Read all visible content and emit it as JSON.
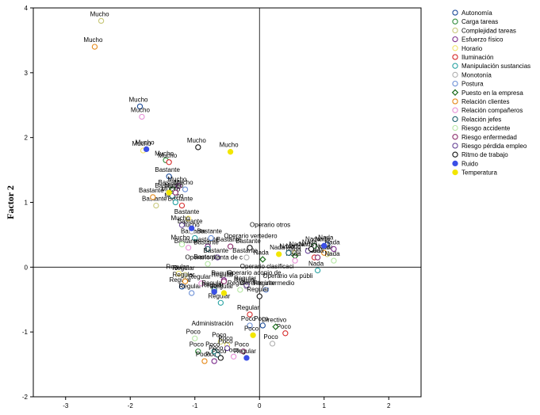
{
  "chart_data": {
    "type": "scatter",
    "title": "",
    "xlabel": "",
    "ylabel": "Factor 2",
    "xlim": [
      -3.5,
      2.5
    ],
    "ylim": [
      -2,
      4
    ],
    "xticks": [
      -3,
      -2,
      -1,
      0,
      1,
      2
    ],
    "yticks": [
      -2,
      -1,
      0,
      1,
      2,
      3,
      4
    ],
    "grid": false,
    "legend_position": "top-right outside",
    "series": [
      {
        "name": "Autonomía",
        "color": "#1f4e9a",
        "marker": "circle-open",
        "points": [
          {
            "x": -1.85,
            "y": 2.48,
            "label": "Mucho"
          },
          {
            "x": -1.4,
            "y": 1.4,
            "label": "Bastante"
          },
          {
            "x": -1.2,
            "y": -0.3,
            "label": "Regular"
          },
          {
            "x": 0.05,
            "y": -0.9,
            "label": "Poco"
          },
          {
            "x": 1.05,
            "y": 0.35,
            "label": "Nada"
          }
        ]
      },
      {
        "name": "Carga tareas",
        "color": "#2e8b3a",
        "marker": "circle-open",
        "points": [
          {
            "x": -1.45,
            "y": 1.65,
            "label": "Mucho"
          },
          {
            "x": -1.35,
            "y": 1.2,
            "label": "Bastante"
          },
          {
            "x": -0.7,
            "y": -0.38,
            "label": "Regular"
          },
          {
            "x": -0.95,
            "y": -1.3,
            "label": "Poco"
          },
          {
            "x": 0.85,
            "y": 0.33,
            "label": "Nada"
          }
        ]
      },
      {
        "name": "Complejidad tareas",
        "color": "#c8c87a",
        "marker": "circle-open",
        "points": [
          {
            "x": -2.45,
            "y": 3.8,
            "label": "Mucho"
          },
          {
            "x": -1.6,
            "y": 0.95,
            "label": "Bastante"
          },
          {
            "x": -1.15,
            "y": -0.12,
            "label": "Regular"
          },
          {
            "x": -0.6,
            "y": -1.15,
            "label": "Poco"
          },
          {
            "x": 1.05,
            "y": 0.2,
            "label": "Nada"
          }
        ]
      },
      {
        "name": "Esfuerzo físico",
        "color": "#7b2d8b",
        "marker": "circle-open",
        "points": [
          {
            "x": -1.25,
            "y": 1.25,
            "label": "Mucho"
          },
          {
            "x": -0.8,
            "y": 0.32,
            "label": "Bastante"
          },
          {
            "x": -0.55,
            "y": -0.2,
            "label": "Regular"
          },
          {
            "x": -0.7,
            "y": -1.45,
            "label": "Poco"
          },
          {
            "x": 1.15,
            "y": 0.28,
            "label": "Nada"
          }
        ]
      },
      {
        "name": "Horario",
        "color": "#f2e36a",
        "marker": "circle-open",
        "points": [
          {
            "x": -1.8,
            "y": 1.8,
            "label": "Mucho"
          },
          {
            "x": -1.1,
            "y": 0.75,
            "label": "Bastante"
          },
          {
            "x": -1.25,
            "y": -0.1,
            "label": "Regular"
          },
          {
            "x": -0.5,
            "y": -1.2,
            "label": "Poco"
          },
          {
            "x": 0.55,
            "y": 0.22,
            "label": "Nada"
          }
        ]
      },
      {
        "name": "Iluminación",
        "color": "#d62b2b",
        "marker": "circle-open",
        "points": [
          {
            "x": -1.4,
            "y": 1.62,
            "label": "Mucho"
          },
          {
            "x": -1.2,
            "y": 0.95,
            "label": "Bastante"
          },
          {
            "x": -0.15,
            "y": -0.73,
            "label": "Regular"
          },
          {
            "x": 0.4,
            "y": -1.02,
            "label": "Poco"
          },
          {
            "x": 0.85,
            "y": 0.15,
            "label": "Nada"
          }
        ]
      },
      {
        "name": "Manipulación sustancias",
        "color": "#2aa3a3",
        "marker": "circle-open",
        "points": [
          {
            "x": -1.3,
            "y": 1.0,
            "label": "Mucho"
          },
          {
            "x": -1.0,
            "y": 0.45,
            "label": "Bastante"
          },
          {
            "x": -0.6,
            "y": -0.55,
            "label": "Regular"
          },
          {
            "x": -0.7,
            "y": -1.3,
            "label": "Poco"
          },
          {
            "x": 0.9,
            "y": -0.05,
            "label": "Nada"
          }
        ]
      },
      {
        "name": "Monotonía",
        "color": "#b0b0b0",
        "marker": "circle-open",
        "points": [
          {
            "x": -1.05,
            "y": 0.55,
            "label": "Mucho"
          },
          {
            "x": -0.2,
            "y": 0.15,
            "label": "Bastante"
          },
          {
            "x": -0.2,
            "y": -0.3,
            "label": "Regular"
          },
          {
            "x": 0.2,
            "y": -1.18,
            "label": "Poco"
          },
          {
            "x": 0.6,
            "y": 0.25,
            "label": "Nada"
          }
        ]
      },
      {
        "name": "Postura",
        "color": "#6b8fd6",
        "marker": "circle-open",
        "points": [
          {
            "x": -1.15,
            "y": 1.2,
            "label": "Mucho"
          },
          {
            "x": -0.75,
            "y": 0.45,
            "label": "Bastante"
          },
          {
            "x": -1.05,
            "y": -0.4,
            "label": "Regular"
          },
          {
            "x": -0.15,
            "y": -0.9,
            "label": "Poco"
          },
          {
            "x": 0.1,
            "y": -0.35,
            "label": "Regular"
          }
        ]
      },
      {
        "name": "Puesto en la empresa",
        "color": "#1a6b1a",
        "marker": "diamond-open",
        "points": [
          {
            "x": 0.05,
            "y": 0.12,
            "label": "Nada"
          },
          {
            "x": 0.25,
            "y": -0.92,
            "label": "Directivo"
          },
          {
            "x": 0.55,
            "y": 0.17,
            "label": "Nada"
          }
        ]
      },
      {
        "name": "Relación clientes",
        "color": "#e58a1a",
        "marker": "circle-open",
        "points": [
          {
            "x": -2.55,
            "y": 3.4,
            "label": "Mucho"
          },
          {
            "x": -1.65,
            "y": 1.08,
            "label": "Bastante"
          },
          {
            "x": -1.15,
            "y": -0.22,
            "label": "Regular"
          },
          {
            "x": -0.85,
            "y": -1.45,
            "label": "Poco"
          },
          {
            "x": 1.0,
            "y": 0.22,
            "label": "Nada"
          }
        ]
      },
      {
        "name": "Relación compañeros",
        "color": "#e68fd6",
        "marker": "circle-open",
        "points": [
          {
            "x": -1.82,
            "y": 2.32,
            "label": "Mucho"
          },
          {
            "x": -1.1,
            "y": 0.3,
            "label": "Bastante"
          },
          {
            "x": -0.9,
            "y": -0.25,
            "label": "Regular"
          },
          {
            "x": -0.4,
            "y": -1.38,
            "label": "Poco"
          },
          {
            "x": 0.55,
            "y": 0.1,
            "label": "Nada"
          }
        ]
      },
      {
        "name": "Relación jefes",
        "color": "#1a5e6b",
        "marker": "circle-open",
        "points": [
          {
            "x": -1.35,
            "y": 1.1,
            "label": "Mucho"
          },
          {
            "x": -0.8,
            "y": 0.28,
            "label": "Bastante"
          },
          {
            "x": -0.7,
            "y": -0.35,
            "label": "Regular"
          },
          {
            "x": -0.65,
            "y": -1.35,
            "label": "Poco"
          },
          {
            "x": 0.45,
            "y": 0.22,
            "label": "Nada"
          }
        ]
      },
      {
        "name": "Riesgo accidente",
        "color": "#b5e6a3",
        "marker": "circle-open",
        "points": [
          {
            "x": -1.2,
            "y": 0.35,
            "label": "Mucho"
          },
          {
            "x": -0.8,
            "y": 0.05,
            "label": "Bastante"
          },
          {
            "x": -0.3,
            "y": -0.35,
            "label": "Regular"
          },
          {
            "x": -1.0,
            "y": -1.1,
            "label": "Poco"
          },
          {
            "x": 1.15,
            "y": 0.1,
            "label": "Nada"
          }
        ]
      },
      {
        "name": "Riesgo enfermedad",
        "color": "#8b2d6b",
        "marker": "circle-open",
        "points": [
          {
            "x": -1.3,
            "y": 1.15,
            "label": "Mucho"
          },
          {
            "x": -0.45,
            "y": 0.32,
            "label": "Bastante"
          },
          {
            "x": -0.55,
            "y": -0.22,
            "label": "Regular"
          },
          {
            "x": -0.25,
            "y": -1.3,
            "label": "Poco"
          },
          {
            "x": 0.9,
            "y": 0.15,
            "label": "Nada"
          }
        ]
      },
      {
        "name": "Riesgo pérdida empleo",
        "color": "#6b4a9a",
        "marker": "circle-open",
        "points": [
          {
            "x": -1.2,
            "y": 0.65,
            "label": "Mucho"
          },
          {
            "x": -0.65,
            "y": 0.15,
            "label": "Bastante"
          },
          {
            "x": -0.2,
            "y": -0.28,
            "label": "Regular"
          },
          {
            "x": -0.5,
            "y": -1.25,
            "label": "Poco"
          },
          {
            "x": 0.75,
            "y": 0.25,
            "label": "Nada"
          }
        ]
      },
      {
        "name": "Ritmo de trabajo",
        "color": "#111111",
        "marker": "circle-open",
        "points": [
          {
            "x": -0.95,
            "y": 1.85,
            "label": "Mucho"
          },
          {
            "x": -0.15,
            "y": 0.3,
            "label": "Bastante"
          },
          {
            "x": -0.6,
            "y": -1.4,
            "label": "Poco"
          },
          {
            "x": 0.0,
            "y": -0.45,
            "label": "Regular"
          },
          {
            "x": 0.8,
            "y": 0.28,
            "label": "Nada"
          }
        ]
      },
      {
        "name": "Ruido",
        "color": "#3b4fe6",
        "marker": "circle-filled",
        "points": [
          {
            "x": -1.75,
            "y": 1.82,
            "label": "Mucho"
          },
          {
            "x": -1.05,
            "y": 0.6,
            "label": "Bastante"
          },
          {
            "x": -0.7,
            "y": -0.38,
            "label": "Regular"
          },
          {
            "x": -0.2,
            "y": -1.4,
            "label": "Regular"
          },
          {
            "x": 1.0,
            "y": 0.33,
            "label": "Nada"
          }
        ]
      },
      {
        "name": "Temperatura",
        "color": "#f2e600",
        "marker": "circle-filled",
        "points": [
          {
            "x": -0.45,
            "y": 1.78,
            "label": "Mucho"
          },
          {
            "x": -1.4,
            "y": 1.15,
            "label": "Bastante"
          },
          {
            "x": -0.55,
            "y": -0.4,
            "label": "Regular"
          },
          {
            "x": -0.1,
            "y": -1.05,
            "label": "Poco"
          },
          {
            "x": 0.3,
            "y": 0.2,
            "label": "Nada"
          }
        ]
      }
    ],
    "annotations": [
      {
        "text": "Operario otros",
        "x": -0.15,
        "y": 0.62
      },
      {
        "text": "Operario vertedero",
        "x": -0.55,
        "y": 0.45
      },
      {
        "text": "Operario planta de c",
        "x": -1.15,
        "y": 0.12
      },
      {
        "text": "Operario clasificaci",
        "x": -0.3,
        "y": -0.02
      },
      {
        "text": "Operario acopio de",
        "x": -0.5,
        "y": -0.12
      },
      {
        "text": "Operario vía públi",
        "x": 0.05,
        "y": -0.17
      },
      {
        "text": "Gerente intermedio",
        "x": -0.3,
        "y": -0.28
      },
      {
        "text": "Administración",
        "x": -1.05,
        "y": -0.9
      }
    ]
  }
}
